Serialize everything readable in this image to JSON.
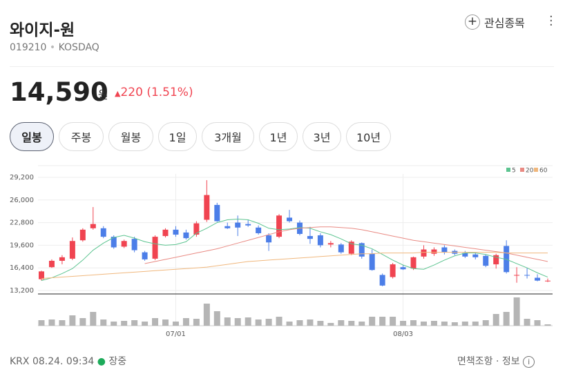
{
  "header": {
    "title": "와이지-원",
    "code": "019210",
    "market": "KOSDAQ",
    "watch": "관심종목",
    "price": "14,590",
    "unit": "원",
    "change": "220",
    "change_pct": "(1.51%)"
  },
  "tabs": [
    "일봉",
    "주봉",
    "월봉",
    "1일",
    "3개월",
    "1년",
    "3년",
    "10년"
  ],
  "chart_data": {
    "type": "candlestick",
    "up_color": "#f04451",
    "down_color": "#4c7ee8",
    "volume_color": "#b5b5b5",
    "ylim": [
      13200,
      29200
    ],
    "yticks": [
      {
        "value": 29200,
        "label": "29,200"
      },
      {
        "value": 26000,
        "label": "26,000"
      },
      {
        "value": 22800,
        "label": "22,800"
      },
      {
        "value": 19600,
        "label": "19,600"
      },
      {
        "value": 16400,
        "label": "16,400"
      },
      {
        "value": 13200,
        "label": "13,200"
      }
    ],
    "categories": [
      null,
      null,
      null,
      null,
      null,
      null,
      null,
      null,
      null,
      null,
      null,
      null,
      null,
      "07/01",
      null,
      null,
      null,
      null,
      null,
      null,
      null,
      null,
      null,
      null,
      null,
      null,
      null,
      null,
      null,
      null,
      null,
      null,
      null,
      null,
      null,
      "08/03",
      null,
      null,
      null,
      null,
      null,
      null,
      null,
      null,
      null,
      null,
      null,
      null,
      null,
      null
    ],
    "open": [
      14800,
      16500,
      17400,
      17700,
      20300,
      22000,
      22000,
      20800,
      19400,
      20500,
      18600,
      17700,
      20900,
      21800,
      21400,
      21100,
      23200,
      25300,
      22300,
      22800,
      22600,
      22100,
      21000,
      20800,
      23500,
      22800,
      20900,
      21000,
      19700,
      19700,
      18400,
      19900,
      18400,
      15400,
      15100,
      16500,
      16300,
      18000,
      18400,
      19300,
      18800,
      18500,
      18300,
      18100,
      16900,
      19500,
      15300,
      15400,
      15000,
      14500
    ],
    "close": [
      15900,
      17400,
      17900,
      20200,
      21800,
      22600,
      20800,
      19300,
      20200,
      18900,
      17600,
      20800,
      21800,
      21100,
      20600,
      22700,
      26700,
      23000,
      22000,
      22100,
      22400,
      21300,
      20000,
      23800,
      23000,
      21200,
      20500,
      19600,
      19900,
      18600,
      20100,
      18000,
      16100,
      13900,
      16900,
      16200,
      17900,
      19000,
      19000,
      18600,
      18400,
      18000,
      17900,
      16700,
      18200,
      15800,
      15400,
      15300,
      14600,
      14590
    ],
    "high": [
      16000,
      17600,
      18200,
      20700,
      22000,
      25000,
      22300,
      21000,
      20400,
      20800,
      18800,
      21000,
      22000,
      22300,
      21800,
      23000,
      28800,
      25600,
      22800,
      23800,
      23200,
      22400,
      21300,
      24000,
      24600,
      23100,
      22200,
      21300,
      20200,
      19900,
      20300,
      20000,
      19000,
      15600,
      17100,
      16800,
      18000,
      19600,
      19300,
      19600,
      19000,
      18800,
      18600,
      18300,
      18400,
      20300,
      16500,
      16400,
      15500,
      14900
    ],
    "low": [
      14600,
      16400,
      16900,
      17500,
      20100,
      21800,
      20600,
      19100,
      19200,
      18600,
      17400,
      17500,
      20700,
      20800,
      20400,
      20800,
      22900,
      22900,
      21900,
      20900,
      22200,
      21100,
      18800,
      20600,
      22800,
      21000,
      19800,
      19300,
      19300,
      18400,
      18200,
      17700,
      16000,
      13800,
      14900,
      16100,
      16100,
      17700,
      18100,
      18300,
      18200,
      17800,
      17600,
      16500,
      16300,
      15600,
      14300,
      14900,
      14500,
      14400
    ],
    "volume": [
      8,
      9,
      8,
      15,
      11,
      20,
      9,
      6,
      7,
      8,
      6,
      11,
      9,
      6,
      11,
      10,
      32,
      21,
      12,
      11,
      12,
      9,
      10,
      13,
      6,
      8,
      9,
      7,
      4,
      8,
      7,
      6,
      13,
      13,
      13,
      7,
      8,
      6,
      7,
      6,
      5,
      6,
      6,
      8,
      17,
      20,
      41,
      10,
      8,
      2
    ],
    "vlim": [
      0,
      41
    ],
    "series": [
      {
        "name": "5",
        "color": "#5cc490",
        "values": [
          14600,
          15000,
          15600,
          16300,
          17500,
          18900,
          19900,
          20700,
          21000,
          20600,
          20100,
          19800,
          19600,
          19700,
          20100,
          21300,
          22000,
          22800,
          23200,
          23300,
          23200,
          22700,
          22000,
          21800,
          21900,
          22100,
          22000,
          21500,
          21100,
          20500,
          19800,
          19600,
          19100,
          18300,
          17500,
          16800,
          16300,
          16200,
          16800,
          17500,
          18100,
          18500,
          18500,
          18300,
          17900,
          17600,
          17000,
          16400,
          15700,
          15100
        ]
      },
      {
        "name": "20",
        "color": "#e98a83",
        "values": [
          null,
          null,
          null,
          null,
          null,
          null,
          null,
          null,
          null,
          null,
          17000,
          17300,
          17600,
          17900,
          18200,
          18500,
          18800,
          19100,
          19500,
          19900,
          20300,
          20700,
          21100,
          21500,
          21800,
          22000,
          22100,
          22200,
          22200,
          22100,
          22000,
          21800,
          21500,
          21200,
          20900,
          20600,
          20300,
          20100,
          19900,
          19700,
          19500,
          19300,
          19100,
          18900,
          18700,
          18500,
          18200,
          17900,
          17600,
          17300
        ]
      },
      {
        "name": "60",
        "color": "#f0b77c",
        "values": [
          14900,
          15000,
          15100,
          15200,
          15300,
          15400,
          15500,
          15600,
          15700,
          15800,
          15900,
          16000,
          16100,
          16200,
          16300,
          16400,
          16500,
          16700,
          16900,
          17100,
          17300,
          17400,
          17500,
          17600,
          17700,
          17800,
          17900,
          18000,
          18100,
          18200,
          18300,
          18400,
          18400,
          18500,
          18500,
          18500,
          18500,
          18600,
          18600,
          18600,
          18600,
          18600,
          18600,
          18600,
          18600,
          18500,
          18500,
          18500,
          18500,
          18500
        ]
      }
    ]
  },
  "footer": {
    "source": "KRX 08.24. 09:34",
    "status": "장중",
    "disclaimer": "면책조항",
    "info": "정보"
  }
}
